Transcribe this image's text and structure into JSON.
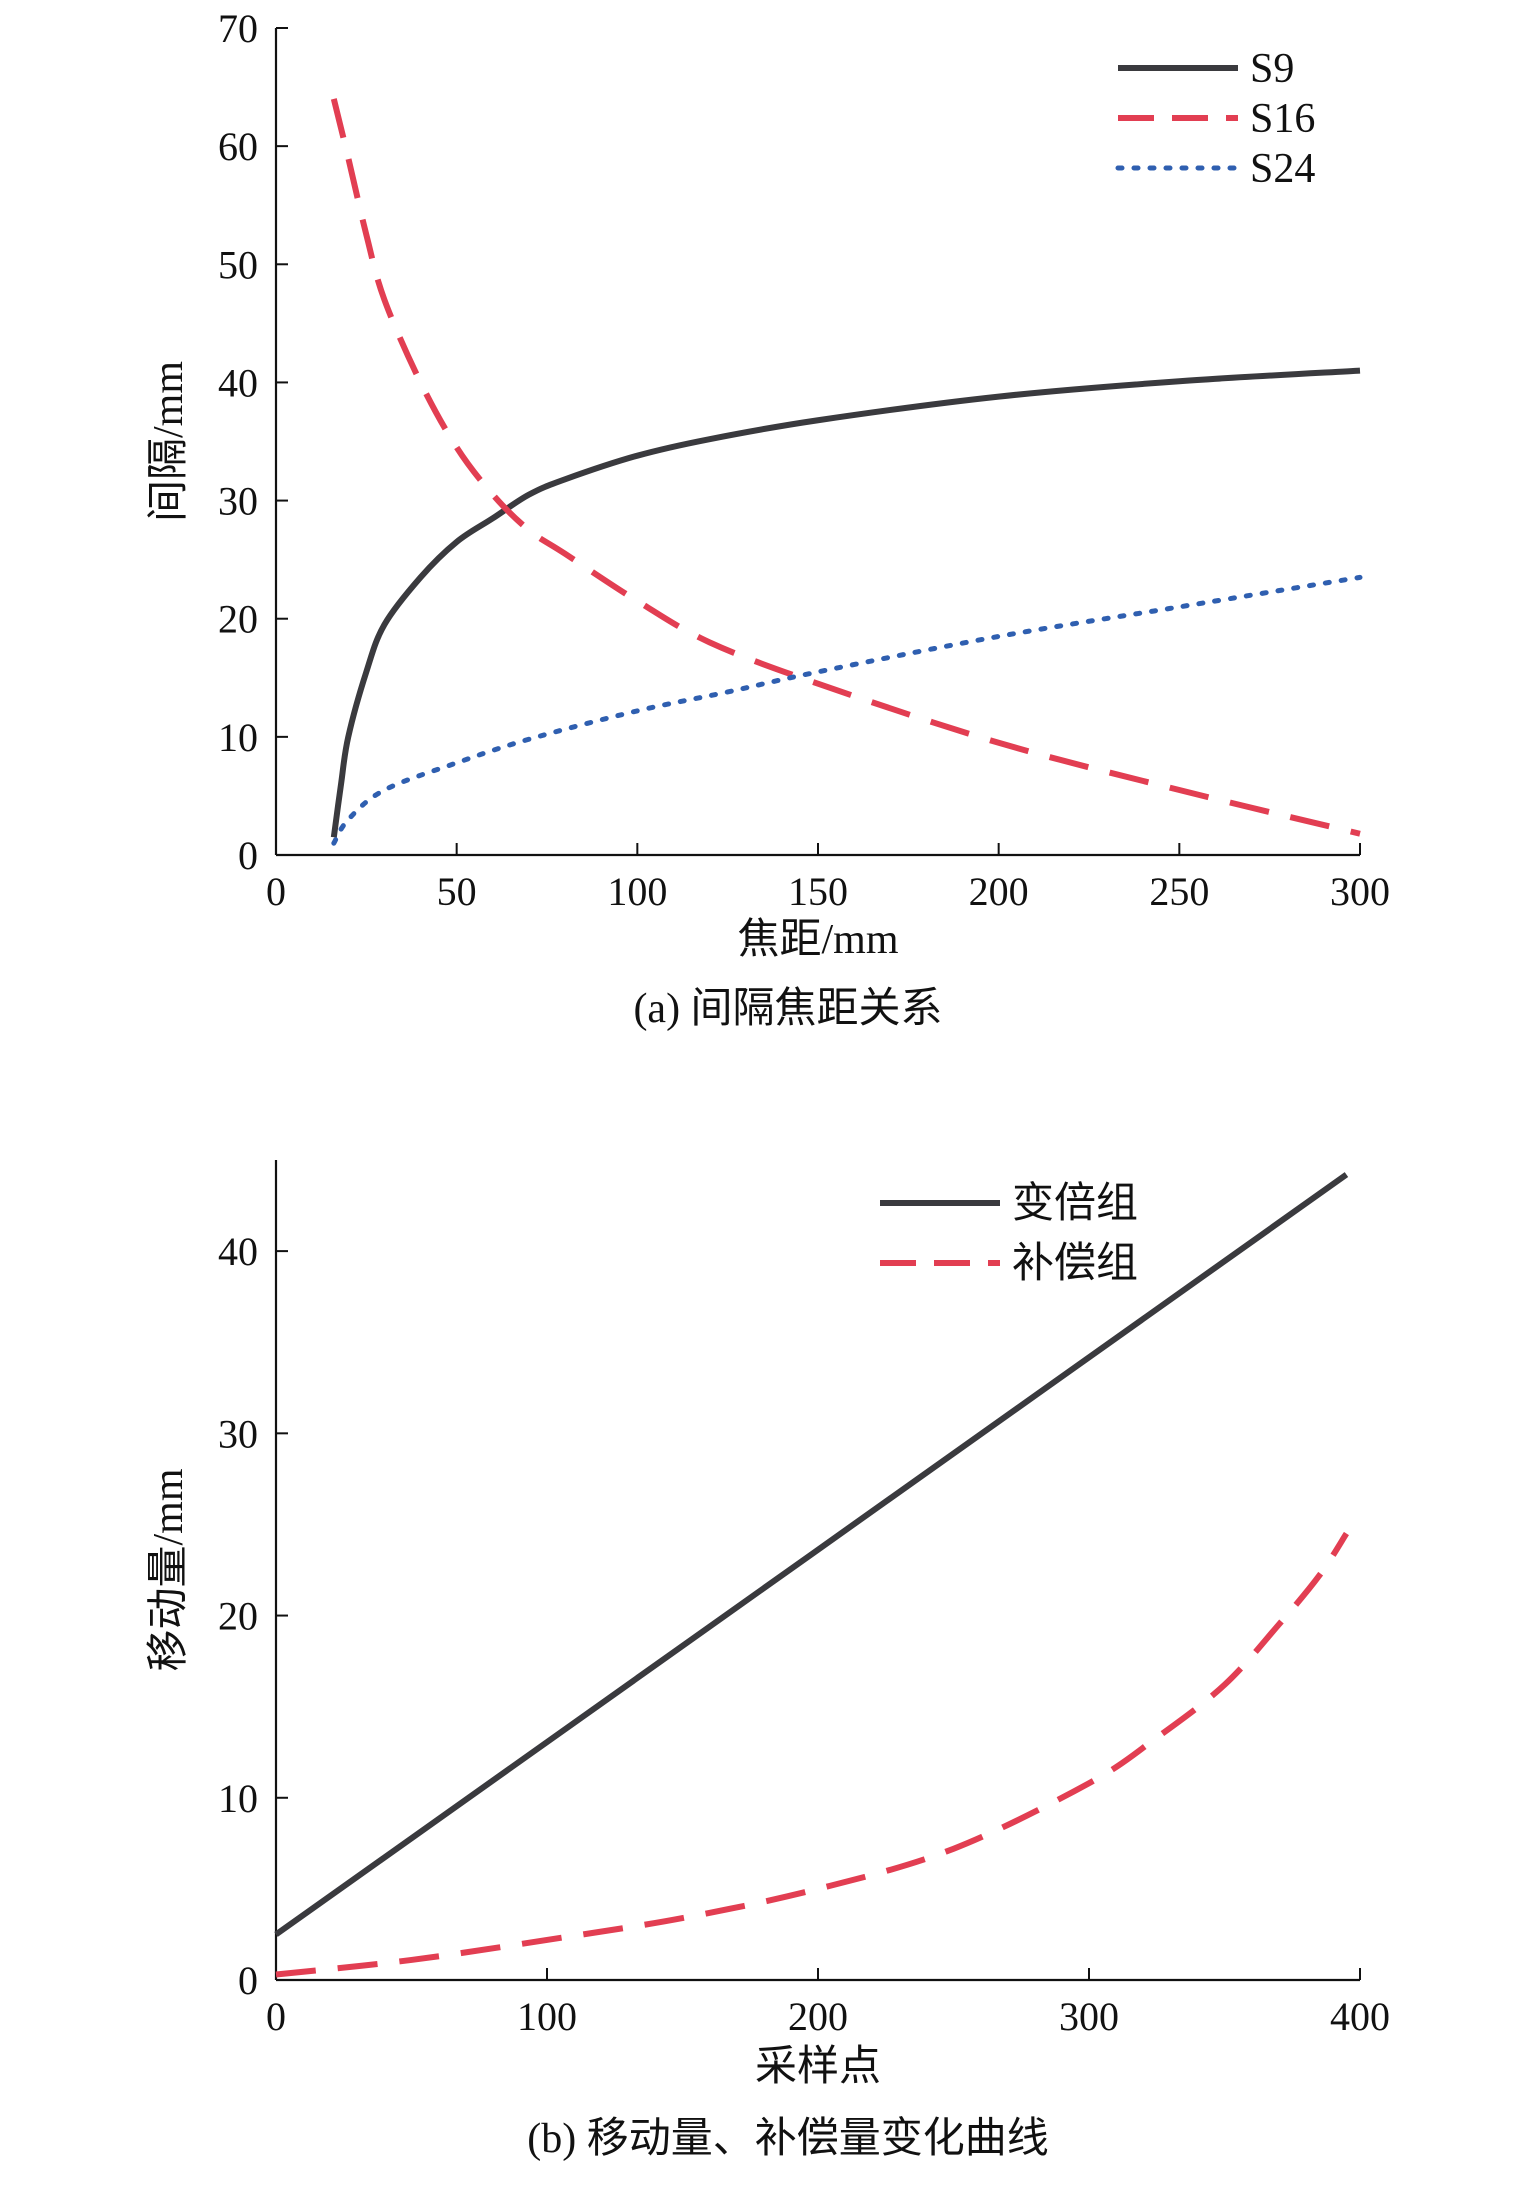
{
  "chart_data": [
    {
      "type": "line",
      "caption": "(a) 间隔焦距关系",
      "xlabel": "焦距/mm",
      "ylabel": "间隔/mm",
      "xlim": [
        0,
        300
      ],
      "ylim": [
        0,
        70
      ],
      "xticks": [
        0,
        50,
        100,
        150,
        200,
        250,
        300
      ],
      "yticks": [
        0,
        10,
        20,
        30,
        40,
        50,
        60,
        70
      ],
      "legend": "top-right",
      "series": [
        {
          "name": "S9",
          "color": "#3a3a3e",
          "style": "solid",
          "x": [
            16,
            18,
            20,
            25,
            30,
            40,
            50,
            60,
            70,
            80,
            100,
            120,
            150,
            200,
            250,
            300
          ],
          "y": [
            1.5,
            6,
            10,
            15.5,
            19.5,
            23.5,
            26.5,
            28.5,
            30.5,
            31.8,
            33.8,
            35.2,
            36.8,
            38.8,
            40.1,
            41
          ]
        },
        {
          "name": "S16",
          "color": "#e23e52",
          "style": "dashed",
          "x": [
            16,
            20,
            25,
            30,
            40,
            50,
            60,
            70,
            80,
            100,
            120,
            150,
            200,
            250,
            300
          ],
          "y": [
            64,
            59,
            52.5,
            47,
            40,
            34.5,
            30.5,
            27.5,
            25.5,
            21.5,
            18,
            14.5,
            9.5,
            5.5,
            1.8
          ]
        },
        {
          "name": "S24",
          "color": "#2f5fb0",
          "style": "dotted",
          "x": [
            16,
            20,
            30,
            50,
            70,
            100,
            125,
            150,
            200,
            250,
            300
          ],
          "y": [
            1,
            3,
            5.5,
            7.8,
            9.8,
            12.2,
            13.8,
            15.5,
            18.5,
            21,
            23.5
          ]
        }
      ]
    },
    {
      "type": "line",
      "caption": "(b) 移动量、补偿量变化曲线",
      "xlabel": "采样点",
      "ylabel": "移动量/mm",
      "xlim": [
        0,
        400
      ],
      "ylim": [
        0,
        45
      ],
      "xticks": [
        0,
        100,
        200,
        300,
        400
      ],
      "yticks": [
        0,
        10,
        20,
        30,
        40
      ],
      "legend": "top-right",
      "series": [
        {
          "name": "变倍组",
          "color": "#3a3a3e",
          "style": "solid",
          "x": [
            0,
            395
          ],
          "y": [
            2.5,
            44.2
          ]
        },
        {
          "name": "补偿组",
          "color": "#e23e52",
          "style": "dashed",
          "x": [
            0,
            50,
            100,
            150,
            200,
            250,
            300,
            325,
            350,
            370,
            385,
            395
          ],
          "y": [
            0.3,
            1.1,
            2.2,
            3.4,
            5,
            7.2,
            10.8,
            13.3,
            16.2,
            19.5,
            22.2,
            24.5
          ]
        }
      ]
    }
  ]
}
